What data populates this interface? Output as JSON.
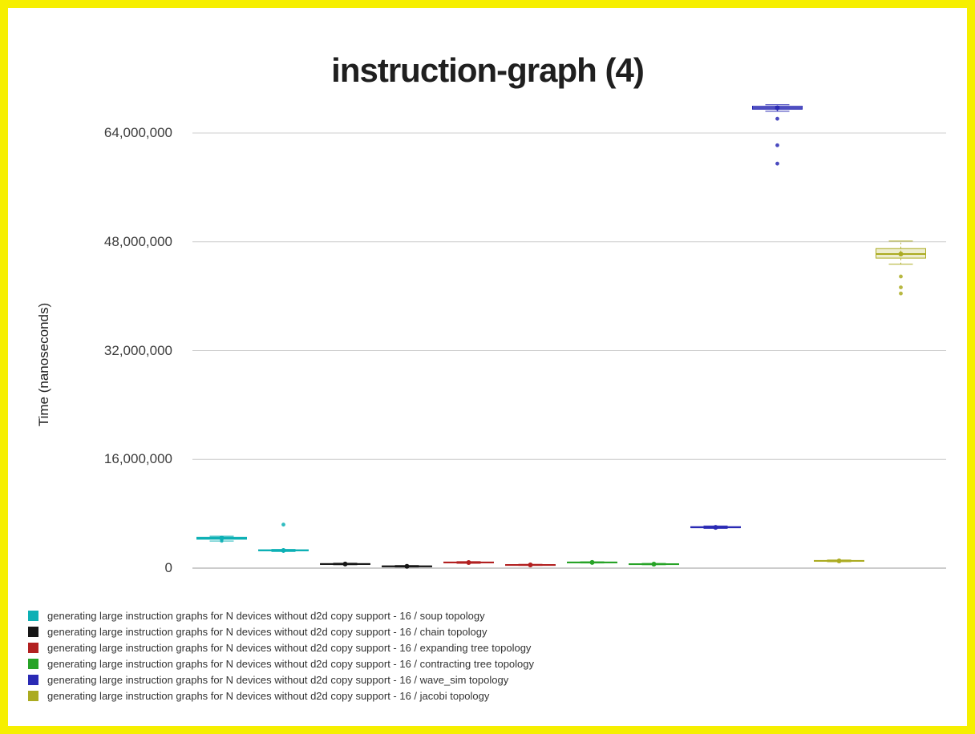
{
  "frame": {
    "color": "#f6ef00"
  },
  "chart_data": {
    "type": "boxplot",
    "title": "instruction-graph (4)",
    "ylabel": "Time (nanoseconds)",
    "xlabel": "",
    "ylim": [
      0,
      69600000
    ],
    "grid": true,
    "gridline_color": "#cccccc",
    "baseline_color": "#9a9a9a",
    "legend_position": "bottom-left",
    "slots": 12,
    "yticks": [
      {
        "value": 0,
        "label": "0"
      },
      {
        "value": 16000000,
        "label": "16,000,000"
      },
      {
        "value": 32000000,
        "label": "32,000,000"
      },
      {
        "value": 48000000,
        "label": "48,000,000"
      },
      {
        "value": 64000000,
        "label": "64,000,000"
      }
    ],
    "series": [
      {
        "name": "generating large instruction graphs for N devices without d2d copy support - 16 / soup topology",
        "color": "#0db0b5",
        "boxes": [
          {
            "slot": 0,
            "low": 4000000,
            "q1": 4250000,
            "median": 4400000,
            "q3": 4550000,
            "high": 4700000,
            "points": [
              4000000
            ],
            "outliers": []
          },
          {
            "slot": 1,
            "low": 2450000,
            "q1": 2550000,
            "median": 2600000,
            "q3": 2700000,
            "high": 2750000,
            "points": [],
            "outliers": [
              6400000
            ]
          }
        ]
      },
      {
        "name": "generating large instruction graphs for N devices without d2d copy support - 16 / chain topology",
        "color": "#161616",
        "boxes": [
          {
            "slot": 2,
            "low": 500000,
            "q1": 550000,
            "median": 600000,
            "q3": 660000,
            "high": 720000,
            "points": [],
            "outliers": []
          },
          {
            "slot": 3,
            "low": 160000,
            "q1": 210000,
            "median": 260000,
            "q3": 320000,
            "high": 380000,
            "points": [],
            "outliers": []
          }
        ]
      },
      {
        "name": "generating large instruction graphs for N devices without d2d copy support - 16 / expanding tree topology",
        "color": "#b22020",
        "boxes": [
          {
            "slot": 4,
            "low": 700000,
            "q1": 780000,
            "median": 830000,
            "q3": 900000,
            "high": 960000,
            "points": [],
            "outliers": []
          },
          {
            "slot": 5,
            "low": 400000,
            "q1": 430000,
            "median": 470000,
            "q3": 520000,
            "high": 560000,
            "points": [],
            "outliers": []
          }
        ]
      },
      {
        "name": "generating large instruction graphs for N devices without d2d copy support - 16 / contracting tree topology",
        "color": "#27a327",
        "boxes": [
          {
            "slot": 6,
            "low": 750000,
            "q1": 800000,
            "median": 840000,
            "q3": 890000,
            "high": 930000,
            "points": [],
            "outliers": []
          },
          {
            "slot": 7,
            "low": 500000,
            "q1": 550000,
            "median": 590000,
            "q3": 640000,
            "high": 690000,
            "points": [],
            "outliers": []
          }
        ]
      },
      {
        "name": "generating large instruction graphs for N devices without d2d copy support - 16 / wave_sim topology",
        "color": "#2a2ab4",
        "boxes": [
          {
            "slot": 8,
            "low": 5850000,
            "q1": 5950000,
            "median": 6000000,
            "q3": 6100000,
            "high": 6200000,
            "points": [],
            "outliers": []
          },
          {
            "slot": 9,
            "low": 67200000,
            "q1": 67500000,
            "median": 67700000,
            "q3": 67950000,
            "high": 68150000,
            "points": [],
            "outliers": [
              66100000,
              62200000,
              59500000
            ]
          }
        ]
      },
      {
        "name": "generating large instruction graphs for N devices without d2d copy support - 16 / jacobi topology",
        "color": "#abab21",
        "boxes": [
          {
            "slot": 10,
            "low": 950000,
            "q1": 1000000,
            "median": 1060000,
            "q3": 1130000,
            "high": 1190000,
            "points": [],
            "outliers": []
          },
          {
            "slot": 11,
            "low": 44700000,
            "q1": 45600000,
            "median": 46200000,
            "q3": 47000000,
            "high": 48100000,
            "points": [],
            "outliers": [
              42900000,
              41300000,
              40400000
            ]
          }
        ]
      }
    ]
  }
}
